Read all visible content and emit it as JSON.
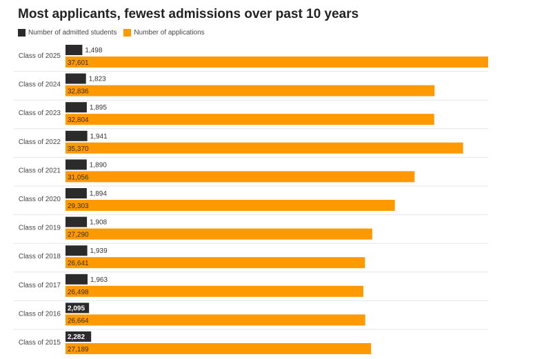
{
  "chart_data": {
    "type": "bar",
    "orientation": "horizontal",
    "title": "Most applicants, fewest admissions over past 10 years",
    "categories": [
      "Class of 2025",
      "Class of 2024",
      "Class of 2023",
      "Class of 2022",
      "Class of 2021",
      "Class of 2020",
      "Class of 2019",
      "Class of 2018",
      "Class of 2017",
      "Class of 2016",
      "Class of 2015"
    ],
    "series": [
      {
        "name": "Number of admitted students",
        "color": "#2b2b2b",
        "values": [
          1498,
          1823,
          1895,
          1941,
          1890,
          1894,
          1908,
          1939,
          1963,
          2095,
          2282
        ],
        "labels": [
          "1,498",
          "1,823",
          "1,895",
          "1,941",
          "1,890",
          "1,894",
          "1,908",
          "1,939",
          "1,963",
          "2,095",
          "2,282"
        ]
      },
      {
        "name": "Number of applications",
        "color": "#ff9900",
        "values": [
          37601,
          32836,
          32804,
          35370,
          31056,
          29303,
          27290,
          26641,
          26498,
          26664,
          27189
        ],
        "labels": [
          "37,601",
          "32,836",
          "32,804",
          "35,370",
          "31,056",
          "29,303",
          "27,290",
          "26,641",
          "26,498",
          "26,664",
          "27,189"
        ]
      }
    ],
    "xlim": [
      0,
      37601
    ],
    "xlabel": "",
    "ylabel": ""
  }
}
